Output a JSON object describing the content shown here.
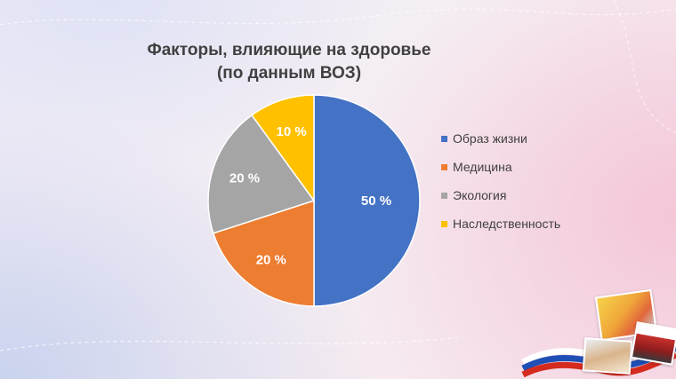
{
  "title": {
    "line1": "Факторы, влияющие на здоровье",
    "line2": "(по данным ВОЗ)"
  },
  "chart_data": {
    "type": "pie",
    "title": "Факторы, влияющие на здоровье (по данным ВОЗ)",
    "slices": [
      {
        "label": "Образ жизни",
        "value": 50,
        "display": "50 %",
        "color": "#4472c4"
      },
      {
        "label": "Медицина",
        "value": 20,
        "display": "20 %",
        "color": "#ed7d31"
      },
      {
        "label": "Экология",
        "value": 20,
        "display": "20 %",
        "color": "#a5a5a5"
      },
      {
        "label": "Наследственность",
        "value": 10,
        "display": "10 %",
        "color": "#ffc000"
      }
    ],
    "start_angle": "12 o'clock",
    "direction": "clockwise",
    "legend_position": "right"
  },
  "decor": {
    "photo_icons": [
      "children-photo-icon",
      "child-drawing-photo-icon",
      "children-flags-photo-icon"
    ],
    "flag_ribbon_colors": [
      "#ffffff",
      "#1f4fb5",
      "#d52b1e"
    ]
  }
}
